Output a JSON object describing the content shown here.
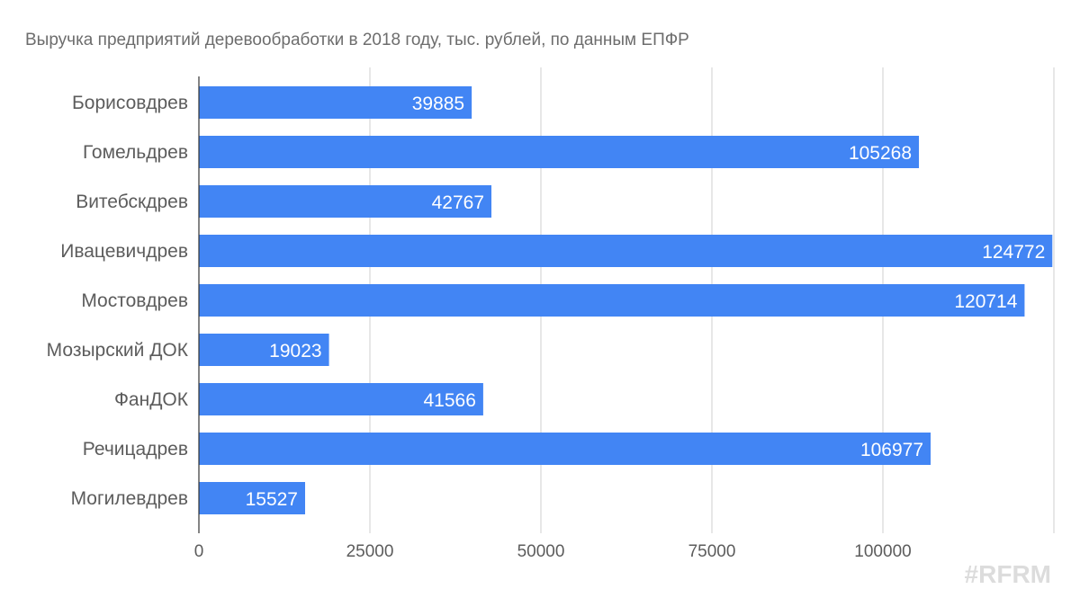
{
  "chart_data": {
    "type": "bar",
    "orientation": "horizontal",
    "title": "Выручка предприятий деревообработки в 2018 году, тыс. рублей, по данным ЕПФР",
    "categories": [
      "Борисовдрев",
      "Гомельдрев",
      "Витебскдрев",
      "Ивацевичдрев",
      "Мостовдрев",
      "Мозырский ДОК",
      "ФанДОК",
      "Речицадрев",
      "Могилевдрев"
    ],
    "values": [
      39885,
      105268,
      42767,
      124772,
      120714,
      19023,
      41566,
      106977,
      15527
    ],
    "xlabel": "",
    "ylabel": "",
    "xlim": [
      0,
      125000
    ],
    "ticks": [
      0,
      25000,
      50000,
      75000,
      100000
    ],
    "grid": true,
    "legend": "none",
    "data_labels": "inside-end",
    "bar_color": "#4285f4"
  },
  "watermark": "#RFRM"
}
